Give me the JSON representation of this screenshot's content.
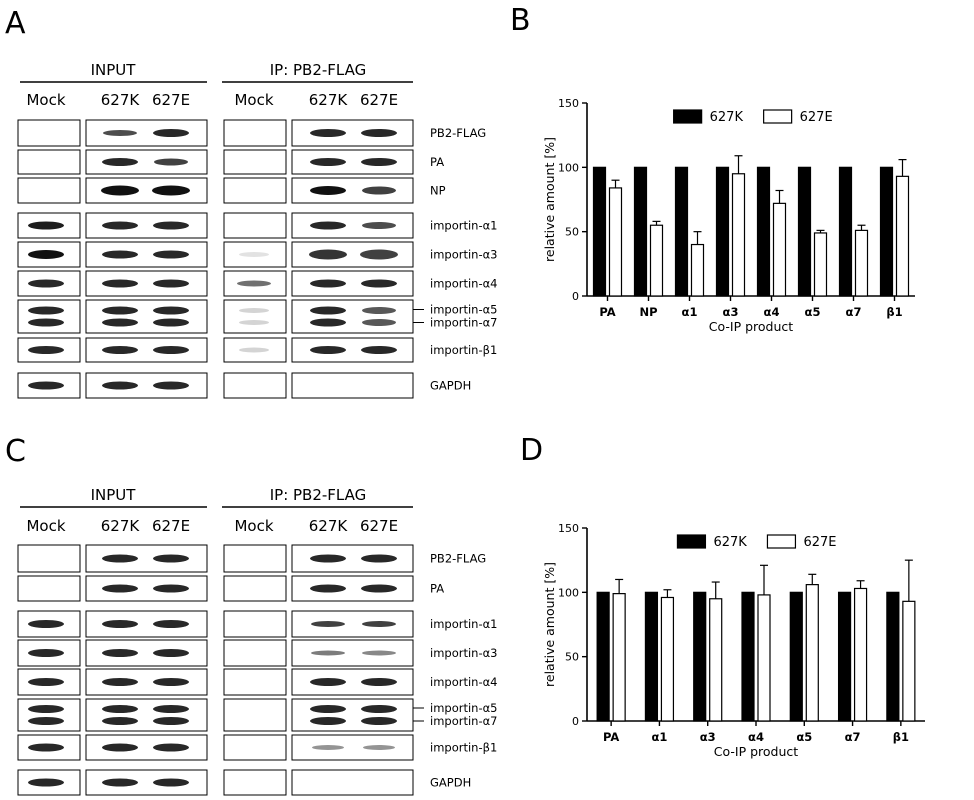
{
  "panel_labels": {
    "a": "A",
    "b": "B",
    "c": "C",
    "d": "D"
  },
  "blot_headers": {
    "input": "INPUT",
    "ip": "IP: PB2-FLAG"
  },
  "lane_labels": [
    "Mock",
    "627K",
    "627E",
    "Mock",
    "627K",
    "627E"
  ],
  "blot_a_proteins": [
    "PB2-FLAG",
    "PA",
    "NP",
    "importin-α1",
    "importin-α3",
    "importin-α4",
    "importin-α5",
    "importin-α7",
    "importin-β1",
    "GAPDH"
  ],
  "blot_c_proteins": [
    "PB2-FLAG",
    "PA",
    "importin-α1",
    "importin-α3",
    "importin-α4",
    "importin-α5",
    "importin-α7",
    "importin-β1",
    "GAPDH"
  ],
  "chart_data": [
    {
      "panel": "B",
      "type": "bar",
      "categories": [
        "PA",
        "NP",
        "α1",
        "α3",
        "α4",
        "α5",
        "α7",
        "β1"
      ],
      "series": [
        {
          "name": "627K",
          "color": "#000000",
          "values": [
            100,
            100,
            100,
            100,
            100,
            100,
            100,
            100
          ],
          "errors": [
            0,
            0,
            0,
            0,
            0,
            0,
            0,
            0
          ]
        },
        {
          "name": "627E",
          "color": "#ffffff",
          "values": [
            84,
            55,
            40,
            95,
            72,
            49,
            51,
            93
          ],
          "errors": [
            6,
            3,
            10,
            14,
            10,
            2,
            4,
            13
          ]
        }
      ],
      "yticks": [
        0,
        50,
        100,
        150
      ],
      "ylim": [
        0,
        150
      ],
      "xlabel": "Co-IP product",
      "ylabel": "relative amount [%]",
      "legend": "top-center"
    },
    {
      "panel": "D",
      "type": "bar",
      "categories": [
        "PA",
        "α1",
        "α3",
        "α4",
        "α5",
        "α7",
        "β1"
      ],
      "series": [
        {
          "name": "627K",
          "color": "#000000",
          "values": [
            100,
            100,
            100,
            100,
            100,
            100,
            100
          ],
          "errors": [
            0,
            0,
            0,
            0,
            0,
            0,
            0
          ]
        },
        {
          "name": "627E",
          "color": "#ffffff",
          "values": [
            99,
            96,
            95,
            98,
            106,
            103,
            93
          ],
          "errors": [
            11,
            6,
            13,
            23,
            8,
            6,
            32
          ]
        }
      ],
      "yticks": [
        0,
        50,
        100,
        150
      ],
      "ylim": [
        0,
        150
      ],
      "xlabel": "Co-IP product",
      "ylabel": "relative amount [%]",
      "legend": "top-center"
    }
  ]
}
